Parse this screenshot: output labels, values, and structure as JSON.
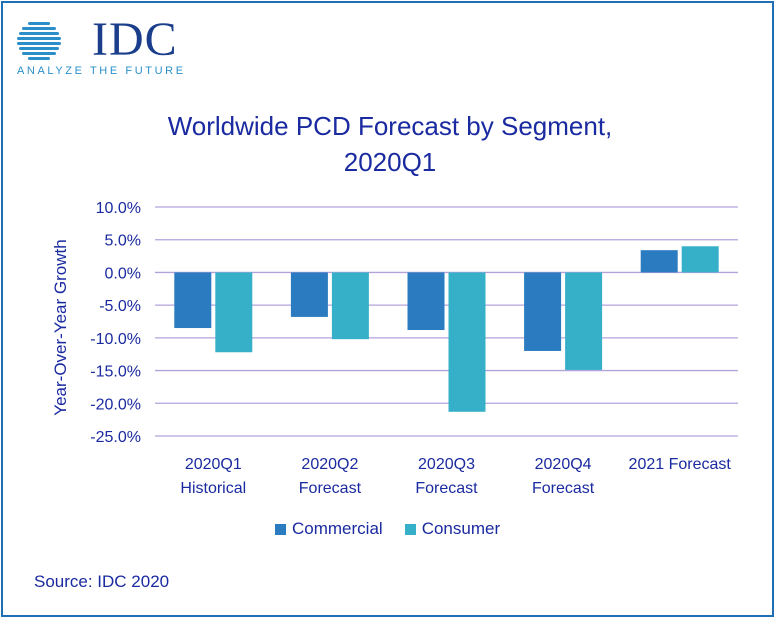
{
  "logo": {
    "wordmark": "IDC",
    "tagline": "ANALYZE THE FUTURE"
  },
  "chart_data": {
    "type": "bar",
    "title": "Worldwide PCD Forecast by Segment,",
    "subtitle": "2020Q1",
    "ylabel": "Year-Over-Year Growth",
    "xlabel": "",
    "ylim": [
      -25,
      10
    ],
    "yticks": [
      10,
      5,
      0,
      -5,
      -10,
      -15,
      -20,
      -25
    ],
    "ytick_labels": [
      "10.0%",
      "5.0%",
      "0.0%",
      "-5.0%",
      "-10.0%",
      "-15.0%",
      "-20.0%",
      "-25.0%"
    ],
    "grid": true,
    "categories": [
      [
        "2020Q1",
        "Historical"
      ],
      [
        "2020Q2",
        "Forecast"
      ],
      [
        "2020Q3",
        "Forecast"
      ],
      [
        "2020Q4",
        "Forecast"
      ],
      [
        "2021 Forecast"
      ]
    ],
    "series": [
      {
        "name": "Commercial",
        "color": "#2a7bc0",
        "values": [
          -8.5,
          -6.8,
          -8.8,
          -12.0,
          3.4
        ]
      },
      {
        "name": "Consumer",
        "color": "#36b0c8",
        "values": [
          -12.2,
          -10.2,
          -21.3,
          -14.9,
          4.0
        ]
      }
    ],
    "legend_position": "bottom"
  },
  "colors": {
    "frame": "#1f6fb4",
    "text": "#1a2aa0",
    "grid": "#b3a3dc"
  },
  "source": "Source: IDC 2020"
}
